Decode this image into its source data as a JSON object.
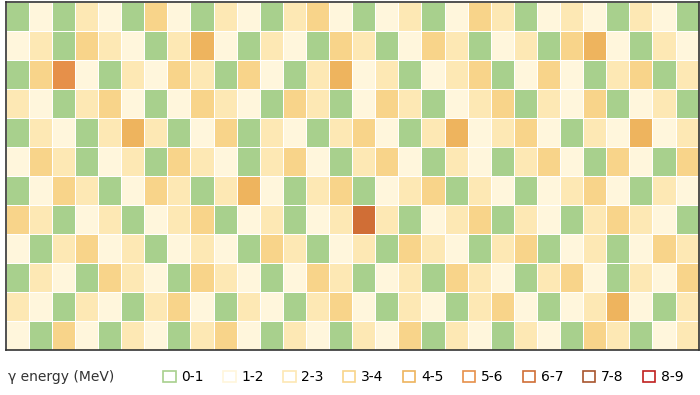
{
  "chart_data": {
    "type": "heatmap",
    "legend_title": "γ energy (MeV)",
    "bins": [
      0,
      1,
      2,
      3,
      4,
      5,
      6,
      7,
      8,
      9
    ],
    "labels": [
      "0-1",
      "1-2",
      "2-3",
      "3-4",
      "4-5",
      "5-6",
      "6-7",
      "7-8",
      "8-9"
    ],
    "colors": [
      "#a8d08d",
      "#fff6dc",
      "#fde8b4",
      "#f8d48a",
      "#eeb45e",
      "#e6904a",
      "#d06e36",
      "#a8552e",
      "#c0201f"
    ],
    "tick_labels": false,
    "cells": [
      [
        0.5,
        1.4,
        0.6,
        2.3,
        1.2,
        0.4,
        3.2,
        1.5,
        0.7,
        2.6,
        1.1,
        0.5,
        2.2,
        3.4,
        1.3,
        0.6,
        1.8,
        2.4,
        0.5,
        1.2,
        3.1,
        2.2,
        0.8,
        1.5,
        2.7,
        1.3,
        0.4,
        2.1,
        1.6,
        0.7
      ],
      [
        1.3,
        2.5,
        0.5,
        3.6,
        2.1,
        1.4,
        0.6,
        2.8,
        4.3,
        1.2,
        0.5,
        2.4,
        1.7,
        0.6,
        3.3,
        2.2,
        0.4,
        1.5,
        3.8,
        2.1,
        0.7,
        1.4,
        2.6,
        0.5,
        3.2,
        4.1,
        1.8,
        0.6,
        2.3,
        1.1
      ],
      [
        0.6,
        3.4,
        5.2,
        1.6,
        0.4,
        2.7,
        1.3,
        3.5,
        2.1,
        0.6,
        3.1,
        1.4,
        0.5,
        2.6,
        4.4,
        1.2,
        2.8,
        0.6,
        1.4,
        2.5,
        3.3,
        0.4,
        1.7,
        3.6,
        1.5,
        0.6,
        2.9,
        3.4,
        0.8,
        2.2
      ],
      [
        2.2,
        1.1,
        0.5,
        2.4,
        3.3,
        1.5,
        0.6,
        1.8,
        3.2,
        2.4,
        1.3,
        0.4,
        3.5,
        2.2,
        0.7,
        1.6,
        3.7,
        2.3,
        0.5,
        1.2,
        2.4,
        3.1,
        0.6,
        2.2,
        1.3,
        3.5,
        0.5,
        1.6,
        2.5,
        0.4
      ],
      [
        0.5,
        2.6,
        1.4,
        0.6,
        2.1,
        4.2,
        2.3,
        0.5,
        1.5,
        3.6,
        0.7,
        2.8,
        1.2,
        0.6,
        2.5,
        3.2,
        1.1,
        0.4,
        2.7,
        4.5,
        1.3,
        2.2,
        3.4,
        1.2,
        0.5,
        2.4,
        1.8,
        4.2,
        1.3,
        2.6
      ],
      [
        1.4,
        3.3,
        2.2,
        0.5,
        1.6,
        2.4,
        0.4,
        3.1,
        2.2,
        1.3,
        0.5,
        2.3,
        3.8,
        1.5,
        0.5,
        2.1,
        3.3,
        1.4,
        0.6,
        2.2,
        1.5,
        0.5,
        2.8,
        3.5,
        1.6,
        0.7,
        3.2,
        1.5,
        0.5,
        3.1
      ],
      [
        0.6,
        1.5,
        3.5,
        2.3,
        0.7,
        1.2,
        3.4,
        2.1,
        0.6,
        2.5,
        4.4,
        1.6,
        0.5,
        2.2,
        3.4,
        0.6,
        1.5,
        2.5,
        3.3,
        0.5,
        2.6,
        1.3,
        0.6,
        1.8,
        2.4,
        3.5,
        1.2,
        0.6,
        2.4,
        1.5
      ],
      [
        3.5,
        2.2,
        0.5,
        1.4,
        2.6,
        0.5,
        1.5,
        2.4,
        3.6,
        0.7,
        1.3,
        2.5,
        0.4,
        1.6,
        2.3,
        6.1,
        2.2,
        0.6,
        1.4,
        2.3,
        3.5,
        0.6,
        2.4,
        1.2,
        0.5,
        2.1,
        3.3,
        2.5,
        1.4,
        0.5
      ],
      [
        1.2,
        0.4,
        2.3,
        3.2,
        1.3,
        2.5,
        0.6,
        1.2,
        2.1,
        1.5,
        0.5,
        3.3,
        2.4,
        0.6,
        1.5,
        2.2,
        0.5,
        3.2,
        2.1,
        1.4,
        0.6,
        2.5,
        3.6,
        0.5,
        1.6,
        2.7,
        0.6,
        1.3,
        3.4,
        2.2
      ],
      [
        0.5,
        2.5,
        1.5,
        0.6,
        3.4,
        2.2,
        1.3,
        0.5,
        3.3,
        2.4,
        1.2,
        0.6,
        1.5,
        3.5,
        2.1,
        0.5,
        1.3,
        2.6,
        0.5,
        3.4,
        2.2,
        1.1,
        0.5,
        2.4,
        3.2,
        1.2,
        0.5,
        2.3,
        1.6,
        3.5
      ],
      [
        2.4,
        1.2,
        0.6,
        2.5,
        1.6,
        0.4,
        2.3,
        3.4,
        1.2,
        0.6,
        2.6,
        1.4,
        0.5,
        2.3,
        3.1,
        1.6,
        0.6,
        2.2,
        1.5,
        0.6,
        2.4,
        3.3,
        1.4,
        0.6,
        1.5,
        2.2,
        4.3,
        1.2,
        0.5,
        2.4
      ],
      [
        1.5,
        0.5,
        3.1,
        1.3,
        0.6,
        2.4,
        1.1,
        0.5,
        2.2,
        3.5,
        1.4,
        0.6,
        2.3,
        1.2,
        0.5,
        2.6,
        1.3,
        3.4,
        0.6,
        2.1,
        1.2,
        0.5,
        2.5,
        1.5,
        0.6,
        3.3,
        2.1,
        0.6,
        1.4,
        2.3
      ]
    ]
  }
}
